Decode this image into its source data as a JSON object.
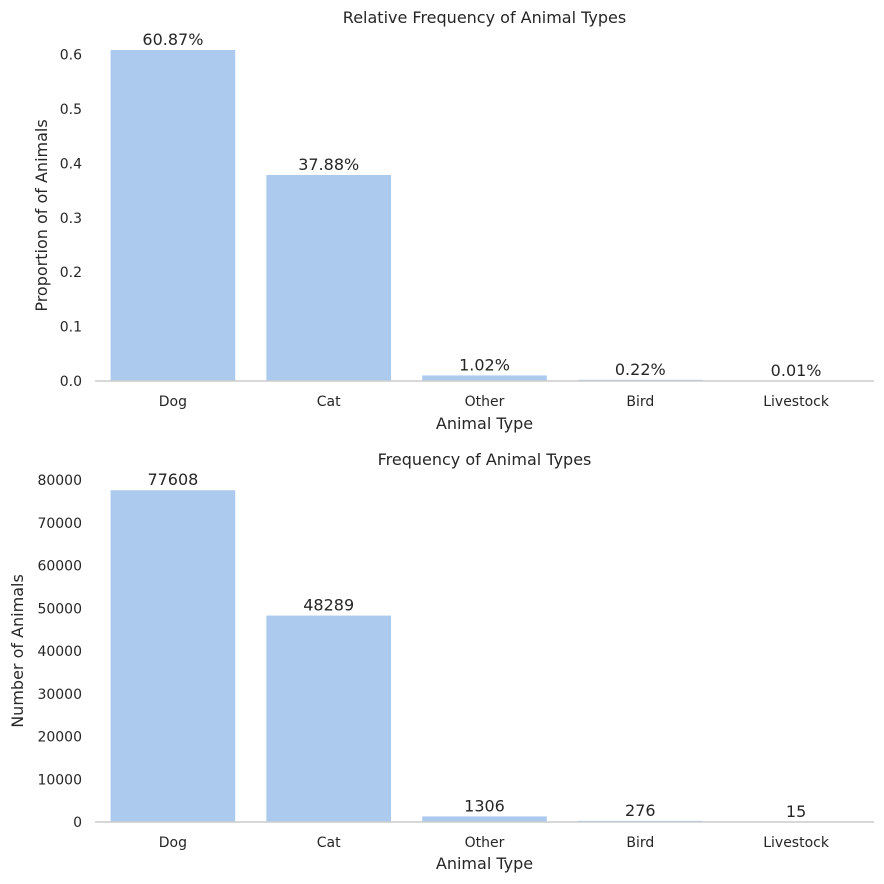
{
  "colors": {
    "bar": "#abcaee",
    "text": "#262626",
    "axis": "#cccccc",
    "background": "#ffffff"
  },
  "chart_data": [
    {
      "type": "bar",
      "title": "Relative Frequency of Animal Types",
      "xlabel": "Animal Type",
      "ylabel": "Proportion of of Animals",
      "categories": [
        "Dog",
        "Cat",
        "Other",
        "Bird",
        "Livestock"
      ],
      "values": [
        0.6087,
        0.3788,
        0.0102,
        0.0022,
        0.0001
      ],
      "data_labels": [
        "60.87%",
        "37.88%",
        "1.02%",
        "0.22%",
        "0.01%"
      ],
      "ylim": [
        0,
        0.6087
      ],
      "yticks": [
        0.0,
        0.1,
        0.2,
        0.3,
        0.4,
        0.5,
        0.6
      ],
      "ytick_labels": [
        "0.0",
        "0.1",
        "0.2",
        "0.3",
        "0.4",
        "0.5",
        "0.6"
      ],
      "grid": false,
      "legend": "none"
    },
    {
      "type": "bar",
      "title": "Frequency of Animal Types",
      "xlabel": "Animal Type",
      "ylabel": "Number of Animals",
      "categories": [
        "Dog",
        "Cat",
        "Other",
        "Bird",
        "Livestock"
      ],
      "values": [
        77608,
        48289,
        1306,
        276,
        15
      ],
      "data_labels": [
        "77608",
        "48289",
        "1306",
        "276",
        "15"
      ],
      "ylim": [
        0,
        80000
      ],
      "yticks": [
        0,
        10000,
        20000,
        30000,
        40000,
        50000,
        60000,
        70000,
        80000
      ],
      "ytick_labels": [
        "0",
        "10000",
        "20000",
        "30000",
        "40000",
        "50000",
        "60000",
        "70000",
        "80000"
      ],
      "grid": false,
      "legend": "none"
    }
  ]
}
